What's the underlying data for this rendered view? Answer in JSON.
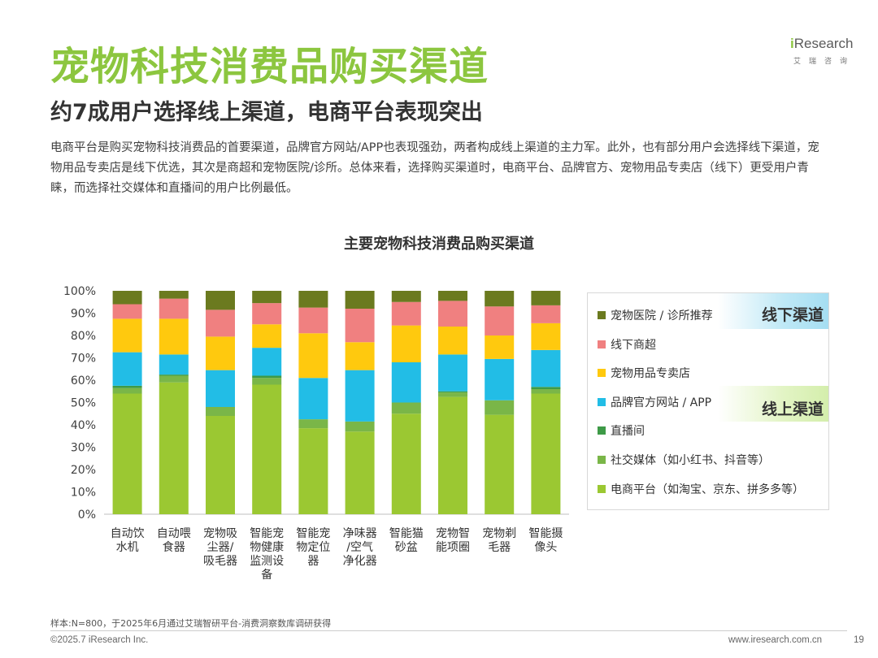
{
  "page": {
    "title": "宠物科技消费品购买渠道",
    "subtitle": "约7成用户选择线上渠道，电商平台表现突出",
    "description": "电商平台是购买宠物科技消费品的首要渠道，品牌官方网站/APP也表现强劲，两者构成线上渠道的主力军。此外，也有部分用户会选择线下渠道，宠物用品专卖店是线下优选，其次是商超和宠物医院/诊所。总体来看，选择购买渠道时，电商平台、品牌官方、宠物用品专卖店（线下）更受用户青睐，而选择社交媒体和直播间的用户比例最低。"
  },
  "logo": {
    "brand_i": "i",
    "brand_rest": "Research",
    "sub": "艾瑞咨询"
  },
  "legend": {
    "offline_label": "线下渠道",
    "online_label": "线上渠道"
  },
  "footer": {
    "source": "样本:N=800，于2025年6月通过艾瑞智研平台-消费洞察数库调研获得",
    "copyright": "©2025.7 iResearch Inc.",
    "url": "www.iresearch.com.cn",
    "page_number": "19"
  },
  "chart_data": {
    "type": "bar",
    "stacked": true,
    "title": "主要宠物科技消费品购买渠道",
    "categories": [
      [
        "自动饮",
        "水机"
      ],
      [
        "自动喂",
        "食器"
      ],
      [
        "宠物吸",
        "尘器/",
        "吸毛器"
      ],
      [
        "智能宠",
        "物健康",
        "监测设",
        "备"
      ],
      [
        "智能宠",
        "物定位",
        "器"
      ],
      [
        "净味器",
        "/空气",
        "净化器"
      ],
      [
        "智能猫",
        "砂盆"
      ],
      [
        "宠物智",
        "能项圈"
      ],
      [
        "宠物剃",
        "毛器"
      ],
      [
        "智能摄",
        "像头"
      ]
    ],
    "ylim": [
      0,
      100
    ],
    "yticks": [
      "0%",
      "10%",
      "20%",
      "30%",
      "40%",
      "50%",
      "60%",
      "70%",
      "80%",
      "90%",
      "100%"
    ],
    "series": [
      {
        "name": "电商平台（如淘宝、京东、拼多多等）",
        "color": "#9bc832",
        "values": [
          54,
          59,
          44,
          58,
          38.5,
          37,
          45,
          52.5,
          44.5,
          54
        ]
      },
      {
        "name": "社交媒体（如小红书、抖音等）",
        "color": "#7ab648",
        "values": [
          2.5,
          3,
          4,
          3,
          4,
          4.5,
          5,
          2,
          6.5,
          2
        ]
      },
      {
        "name": "直播间",
        "color": "#3e9a47",
        "values": [
          1,
          0.5,
          0,
          1,
          0,
          0,
          0,
          0.5,
          0,
          1
        ]
      },
      {
        "name": "品牌官方网站 / APP",
        "color": "#22bde6",
        "values": [
          15,
          9,
          16.5,
          12.5,
          18.5,
          23,
          18,
          16.5,
          18.5,
          16.5
        ]
      },
      {
        "name": "宠物用品专卖店",
        "color": "#ffc90e",
        "values": [
          15,
          16,
          15,
          10.5,
          20,
          12.5,
          16.5,
          12.5,
          10.5,
          12
        ]
      },
      {
        "name": "线下商超",
        "color": "#f08080",
        "values": [
          6.5,
          9,
          12,
          9.5,
          11.5,
          15,
          10.5,
          11.5,
          13,
          8
        ]
      },
      {
        "name": "宠物医院 / 诊所推荐",
        "color": "#6b7a1f",
        "values": [
          6,
          3.5,
          8.5,
          5.5,
          7.5,
          8,
          5,
          4.5,
          7,
          6.5
        ]
      }
    ],
    "legend_order": [
      "宠物医院 / 诊所推荐",
      "线下商超",
      "宠物用品专卖店",
      "品牌官方网站 / APP",
      "直播间",
      "社交媒体（如小红书、抖音等）",
      "电商平台（如淘宝、京东、拼多多等）"
    ],
    "xlabel": "",
    "ylabel": ""
  }
}
